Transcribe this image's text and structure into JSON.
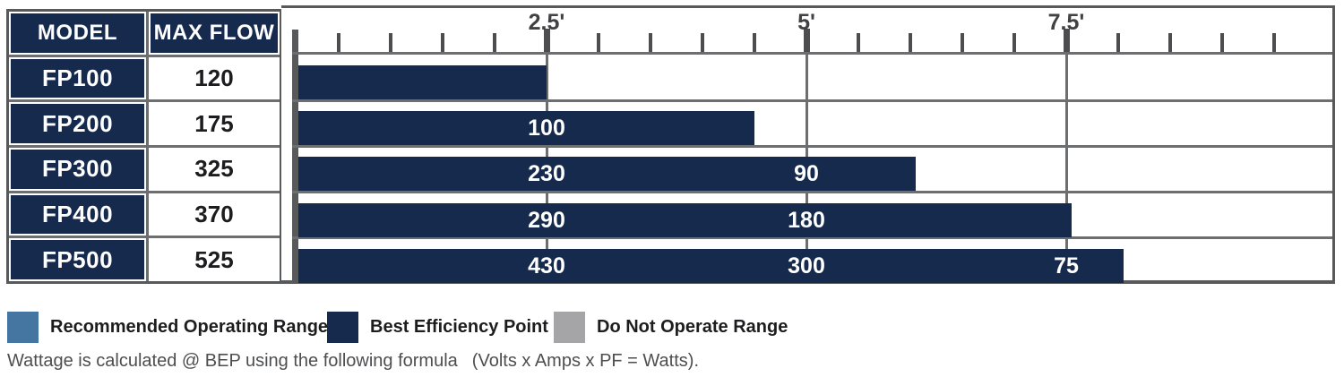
{
  "table": {
    "headers": [
      "MODEL",
      "MAX FLOW"
    ],
    "rows": [
      [
        "FP100",
        "120"
      ],
      [
        "FP200",
        "175"
      ],
      [
        "FP300",
        "325"
      ],
      [
        "FP400",
        "370"
      ],
      [
        "FP500",
        "525"
      ]
    ]
  },
  "chart_data": {
    "type": "bar",
    "orientation": "horizontal",
    "axis": {
      "unit": "feet of head",
      "range_ft": [
        0,
        10
      ],
      "tick_interval_ft": 0.5,
      "major_ticks_ft": [
        2.5,
        5,
        7.5
      ],
      "major_tick_labels": [
        "2.5'",
        "5'",
        "7.5'"
      ],
      "grid": "vertical lines at major ticks"
    },
    "series": [
      {
        "model": "FP100",
        "max_flow_gph": 120,
        "max_head_ft": 2.5,
        "bep_labels": []
      },
      {
        "model": "FP200",
        "max_flow_gph": 175,
        "max_head_ft": 4.5,
        "bep_labels": [
          {
            "head_ft": 2.5,
            "flow": "100"
          }
        ]
      },
      {
        "model": "FP300",
        "max_flow_gph": 325,
        "max_head_ft": 6.05,
        "bep_labels": [
          {
            "head_ft": 2.5,
            "flow": "230"
          },
          {
            "head_ft": 5,
            "flow": "90"
          }
        ]
      },
      {
        "model": "FP400",
        "max_flow_gph": 370,
        "max_head_ft": 7.55,
        "bep_labels": [
          {
            "head_ft": 2.5,
            "flow": "290"
          },
          {
            "head_ft": 5,
            "flow": "180"
          }
        ]
      },
      {
        "model": "FP500",
        "max_flow_gph": 525,
        "max_head_ft": 8.05,
        "bep_labels": [
          {
            "head_ft": 2.5,
            "flow": "430"
          },
          {
            "head_ft": 5,
            "flow": "300"
          },
          {
            "head_ft": 7.5,
            "flow": "75"
          }
        ]
      }
    ]
  },
  "legend": {
    "items": [
      {
        "label": "Recommended Operating Range",
        "color": "#4576a1"
      },
      {
        "label": "Best Efficiency Point",
        "color": "#152a4d"
      },
      {
        "label": "Do Not Operate Range",
        "color": "#a5a4a7"
      }
    ]
  },
  "footnote": {
    "text": "Wattage is calculated @ BEP using the following formula",
    "formula": "(Volts x Amps x PF = Watts)."
  },
  "colors": {
    "bar_navy": "#152a4d",
    "border_dark": "#58595b",
    "border_mid": "#6d6e70",
    "tick": "#4d4d4f",
    "axis_text": "#414042",
    "legend_blue": "#4576a1",
    "legend_gray": "#a5a4a7"
  }
}
